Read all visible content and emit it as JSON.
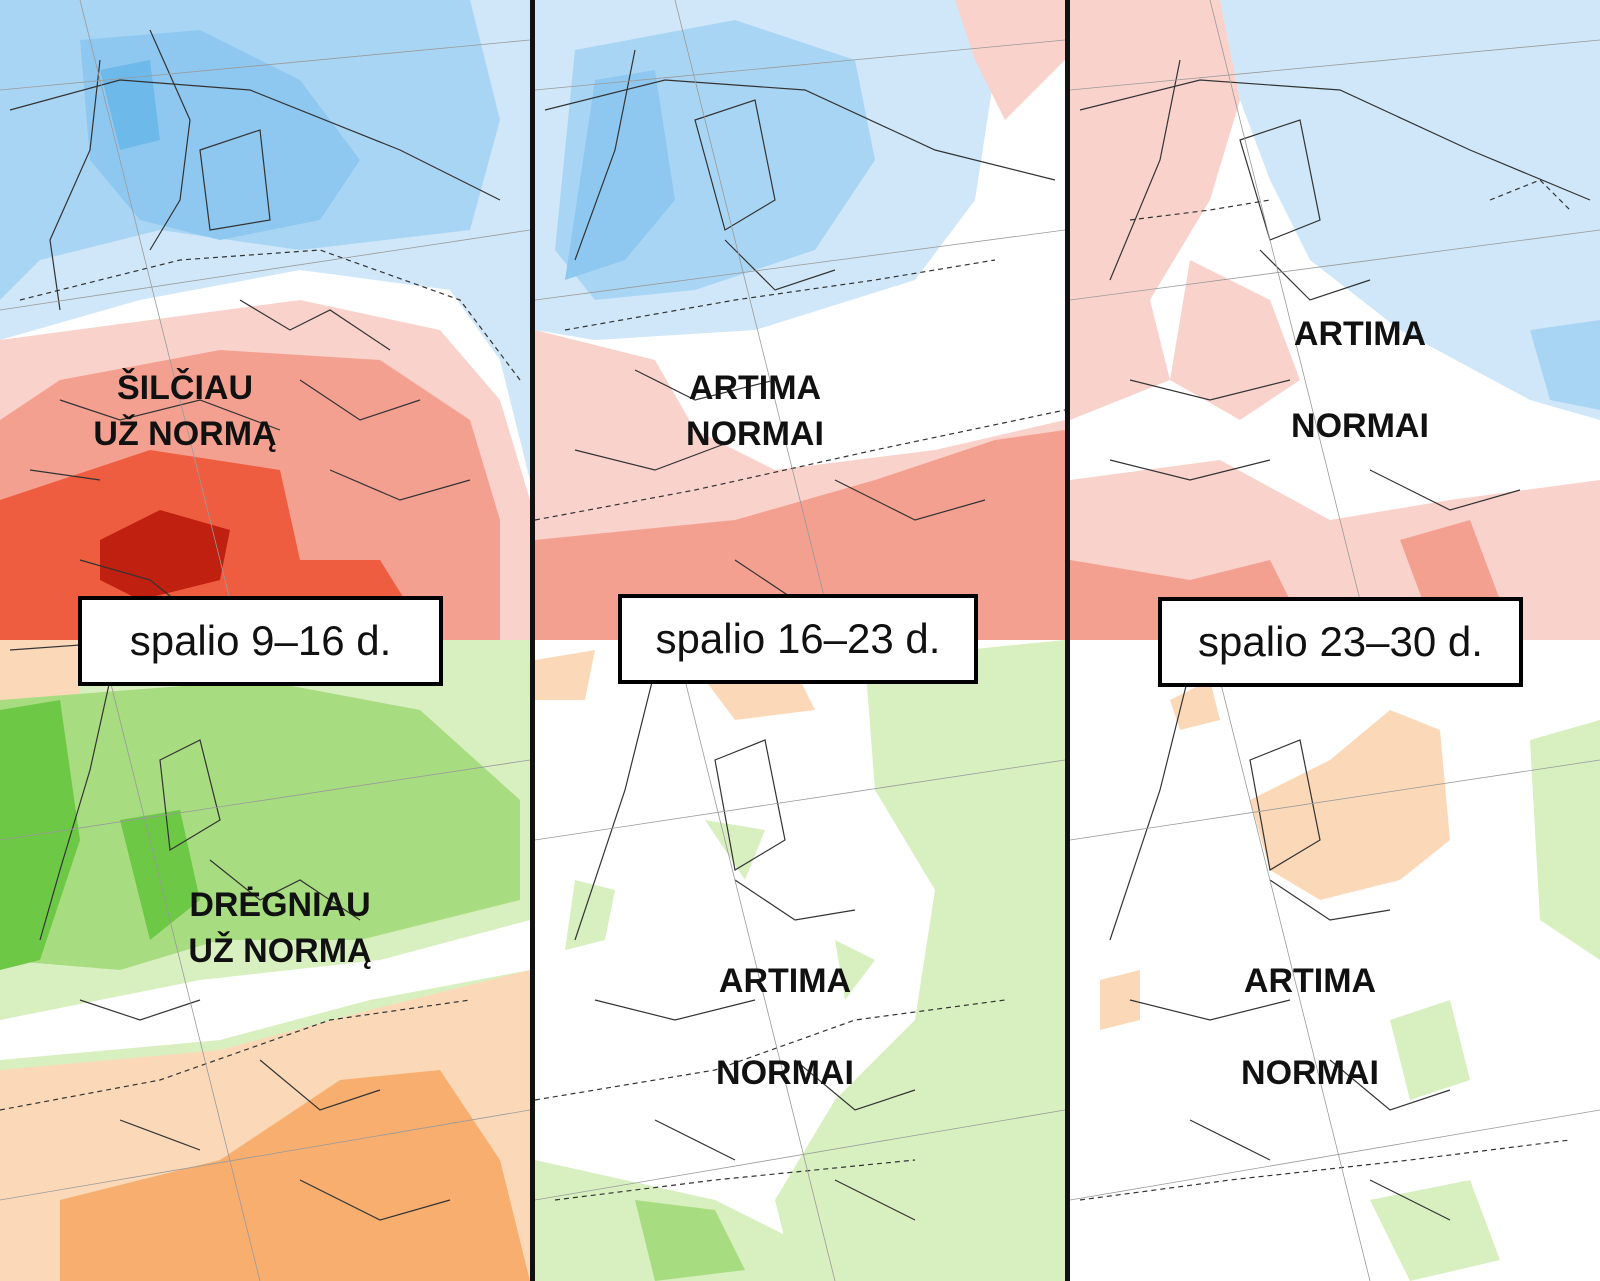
{
  "periods": [
    {
      "label": "spalio 9–16 d.",
      "temperature": {
        "text_line1": "ŠILČIAU",
        "text_line2": "UŽ NORMĄ",
        "category": "warmer"
      },
      "precipitation": {
        "text_line1": "DRĖGNIAU",
        "text_line2": "UŽ NORMĄ",
        "category": "wetter"
      }
    },
    {
      "label": "spalio 16–23 d.",
      "temperature": {
        "text_line1": "ARTIMA",
        "text_line2": "NORMAI",
        "category": "near-normal"
      },
      "precipitation": {
        "text_line1": "ARTIMA",
        "text_line2": "NORMAI",
        "category": "near-normal"
      }
    },
    {
      "label": "spalio 23–30 d.",
      "temperature": {
        "text_line1": "ARTIMA",
        "text_line2": "NORMAI",
        "category": "near-normal"
      },
      "precipitation": {
        "text_line1": "ARTIMA",
        "text_line2": "NORMAI",
        "category": "near-normal"
      }
    }
  ],
  "colors": {
    "cold_light": "#cfe7f8",
    "cold_mid": "#a9d5f4",
    "cold_strong": "#6db9ea",
    "warm_light": "#f9d2cc",
    "warm_mid": "#f4a090",
    "warm_strong": "#ee5d3f",
    "warm_extreme": "#c0200f",
    "wet_light": "#d8efbf",
    "wet_mid": "#a8dc80",
    "wet_strong": "#6cc845",
    "dry_light": "#fbd9b8",
    "dry_mid": "#f7ae6f",
    "neutral": "#ffffff",
    "divider": "#111111"
  }
}
